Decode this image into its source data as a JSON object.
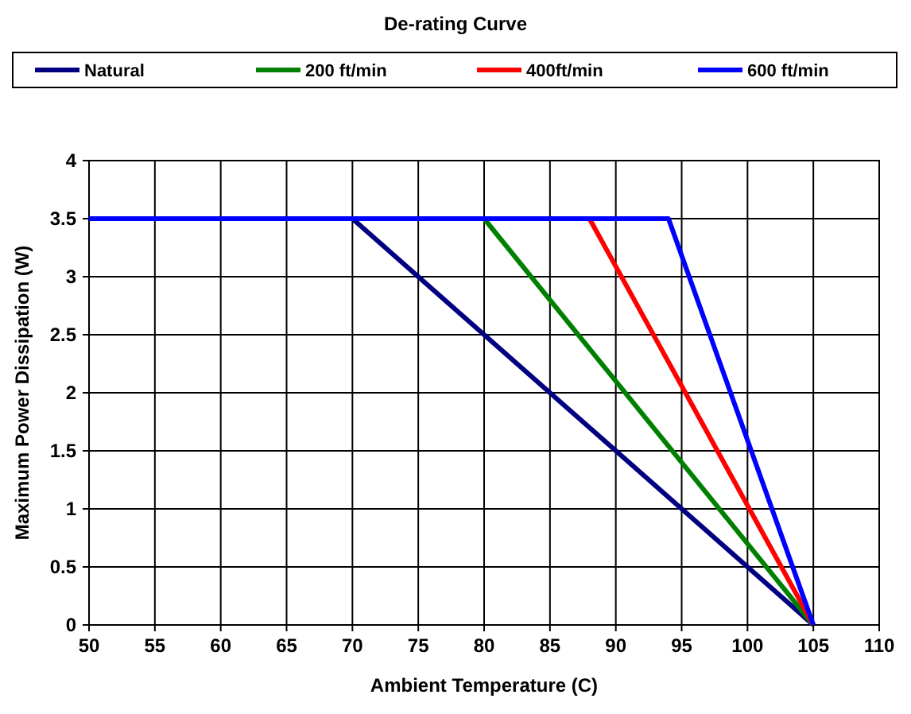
{
  "chart_data": {
    "type": "line",
    "title": "De-rating Curve",
    "xlabel": "Ambient Temperature (C)",
    "ylabel": "Maximum Power Dissipation (W)",
    "series": [
      {
        "name": "Natural",
        "color": "#000080",
        "x": [
          70,
          105
        ],
        "values": [
          3.5,
          0
        ]
      },
      {
        "name": "200 ft/min",
        "color": "#008000",
        "x": [
          80,
          105
        ],
        "values": [
          3.5,
          0
        ]
      },
      {
        "name": "400ft/min",
        "color": "#ff0000",
        "x": [
          88,
          105
        ],
        "values": [
          3.5,
          0
        ]
      },
      {
        "name": "600 ft/min",
        "color": "#0000ff",
        "x": [
          50,
          94,
          105
        ],
        "values": [
          3.5,
          3.5,
          0
        ]
      }
    ],
    "xlim": [
      50,
      110
    ],
    "xticks": [
      50,
      55,
      60,
      65,
      70,
      75,
      80,
      85,
      90,
      95,
      100,
      105,
      110
    ],
    "ylim": [
      0,
      4
    ],
    "yticks": [
      0,
      0.5,
      1,
      1.5,
      2,
      2.5,
      3,
      3.5,
      4
    ],
    "grid": true,
    "legend": "top",
    "marker": "none",
    "line_style": "solid"
  }
}
